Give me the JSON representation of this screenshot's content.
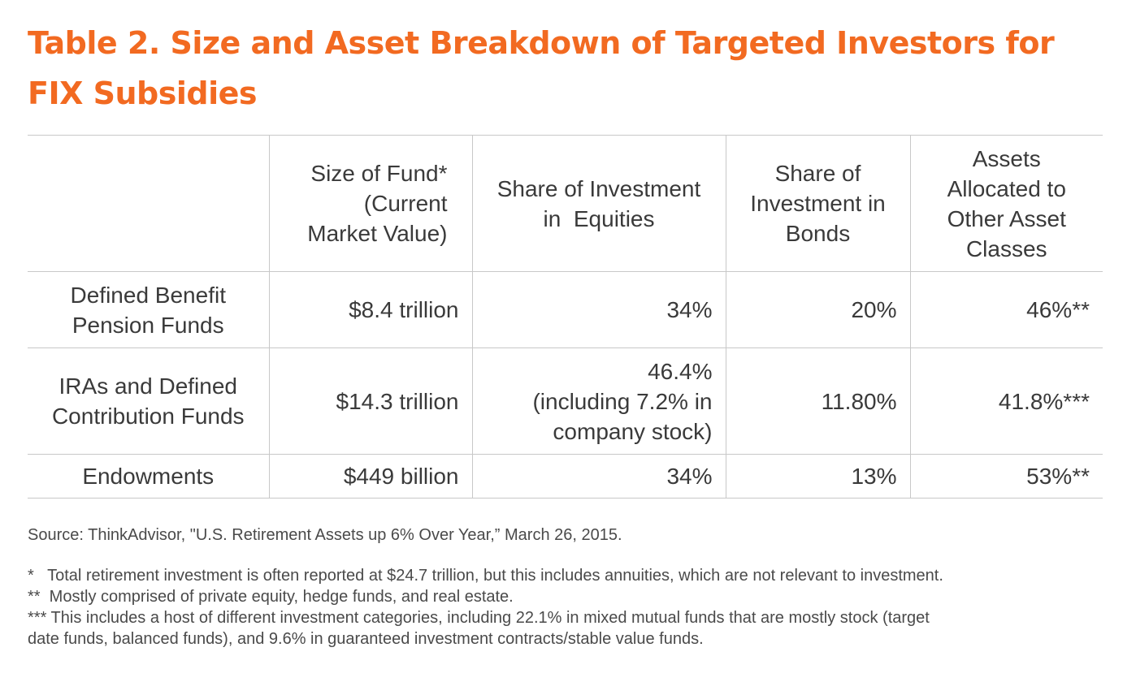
{
  "title_line1": "Table 2. Size and Asset Breakdown of Targeted Investors for",
  "title_line2": "FIX Subsidies",
  "table": {
    "headers": [
      "",
      "Size of Fund* (Current Market Value)",
      "Share of Investment in  Equities",
      "Share of Investment in Bonds",
      "Assets Allocated to Other Asset Classes"
    ],
    "header_lines": {
      "size": [
        "Size of Fund*",
        "(Current",
        "Market Value)"
      ],
      "equities": [
        "Share of Investment",
        "in  Equities"
      ],
      "bonds": [
        "Share of",
        "Investment in",
        "Bonds"
      ],
      "other": [
        "Assets",
        "Allocated to",
        "Other Asset",
        "Classes"
      ]
    },
    "rows": [
      {
        "label_lines": [
          "Defined Benefit",
          "Pension Funds"
        ],
        "size": "$8.4 trillion",
        "equities_lines": [
          "34%"
        ],
        "bonds": "20%",
        "other": "46%**"
      },
      {
        "label_lines": [
          "IRAs and Defined",
          "Contribution Funds"
        ],
        "size": "$14.3 trillion",
        "equities_lines": [
          "46.4%",
          "(including 7.2% in",
          "company stock)"
        ],
        "bonds": "11.80%",
        "other": "41.8%***"
      },
      {
        "label_lines": [
          "Endowments"
        ],
        "size": "$449 billion",
        "equities_lines": [
          "34%"
        ],
        "bonds": "13%",
        "other": "53%**"
      }
    ]
  },
  "source": "Source: ThinkAdvisor, \"U.S. Retirement Assets up 6% Over Year,” March 26, 2015.",
  "notes": {
    "note1": "*   Total retirement investment is often reported at $24.7 trillion, but this includes annuities, which are not relevant to investment.",
    "note2": "**  Mostly comprised of private equity, hedge funds, and real estate.",
    "note3_line1": "*** This includes a host of different investment categories, including 22.1% in mixed mutual funds that are mostly stock (target",
    "note3_line2": "date funds, balanced funds), and 9.6% in guaranteed investment contracts/stable value funds."
  },
  "colors": {
    "title": "#f26a21",
    "text": "#3a3a3a",
    "rule": "#c8c8c8"
  }
}
